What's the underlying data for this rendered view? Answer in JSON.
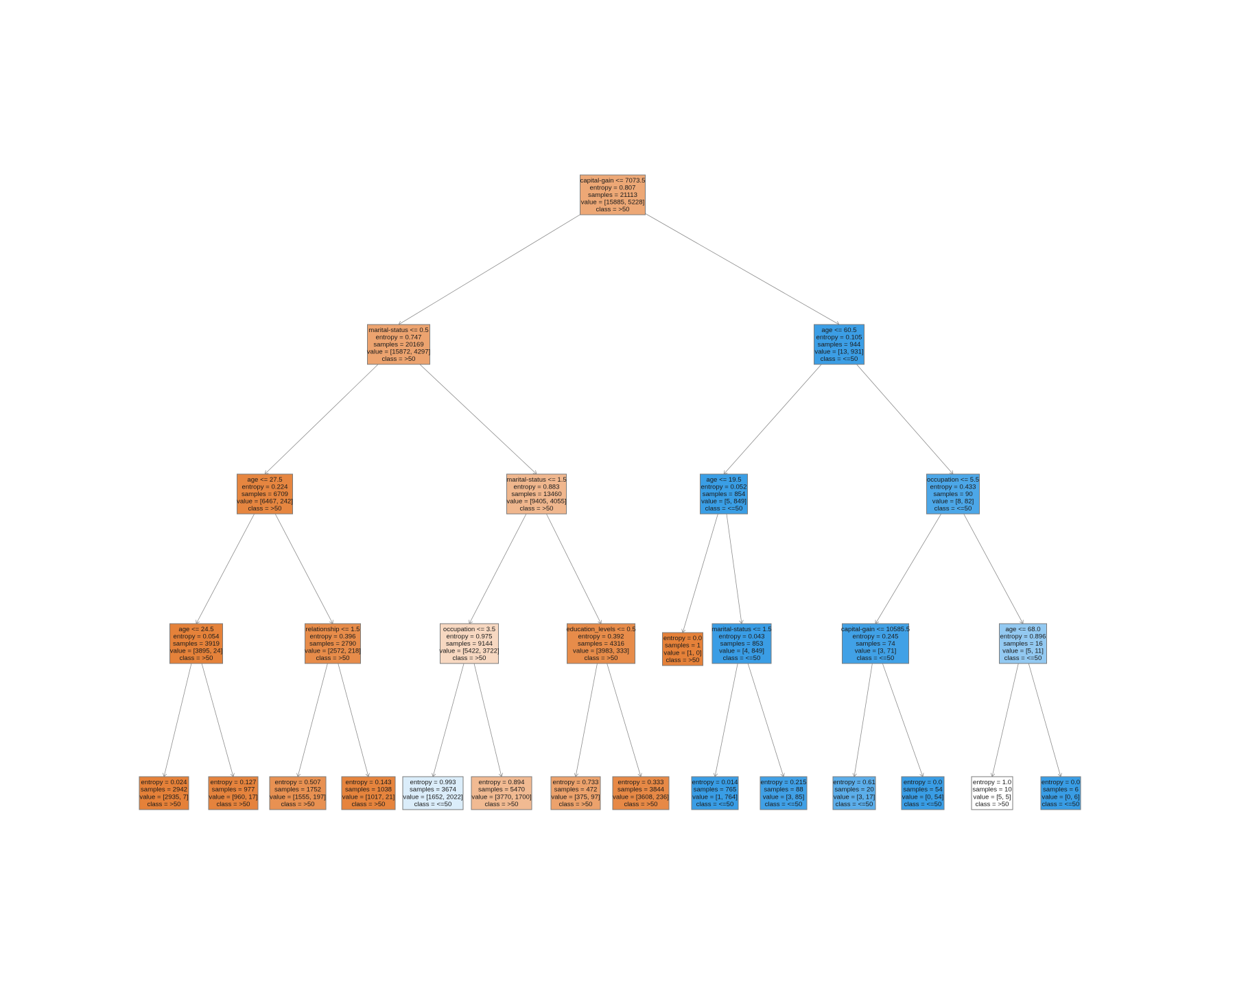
{
  "tree": {
    "nodes": [
      {
        "id": "n0",
        "lines": [
          "capital-gain <= 7073.5",
          "entropy = 0.807",
          "samples = 21113",
          "value = [15885, 5228]",
          "class = >50"
        ],
        "fill": "#eda876"
      },
      {
        "id": "n1",
        "lines": [
          "marital-status <= 0.5",
          "entropy = 0.747",
          "samples = 20169",
          "value = [15872, 4297]",
          "class = >50"
        ],
        "fill": "#eca36f"
      },
      {
        "id": "n2",
        "lines": [
          "age <= 60.5",
          "entropy = 0.105",
          "samples = 944",
          "value = [13, 931]",
          "class = <=50"
        ],
        "fill": "#3c9ee5"
      },
      {
        "id": "n3",
        "lines": [
          "age <= 27.5",
          "entropy = 0.224",
          "samples = 6709",
          "value = [6467, 242]",
          "class = >50"
        ],
        "fill": "#e68640"
      },
      {
        "id": "n4",
        "lines": [
          "marital-status <= 1.5",
          "entropy = 0.883",
          "samples = 13460",
          "value = [9405, 4055]",
          "class = >50"
        ],
        "fill": "#f0b78e"
      },
      {
        "id": "n5",
        "lines": [
          "age <= 19.5",
          "entropy = 0.052",
          "samples = 854",
          "value = [5, 849]",
          "class = <=50"
        ],
        "fill": "#3a9ee5"
      },
      {
        "id": "n6",
        "lines": [
          "occupation <= 5.5",
          "entropy = 0.433",
          "samples = 90",
          "value = [8, 82]",
          "class = <=50"
        ],
        "fill": "#4ca7e8"
      },
      {
        "id": "n7",
        "lines": [
          "age <= 24.5",
          "entropy = 0.054",
          "samples = 3919",
          "value = [3895, 24]",
          "class = >50"
        ],
        "fill": "#e5823a"
      },
      {
        "id": "n8",
        "lines": [
          "relationship <= 1.5",
          "entropy = 0.396",
          "samples = 2790",
          "value = [2572, 218]",
          "class = >50"
        ],
        "fill": "#e78c4a"
      },
      {
        "id": "n9",
        "lines": [
          "occupation <= 3.5",
          "entropy = 0.975",
          "samples = 9144",
          "value = [5422, 3722]",
          "class = >50"
        ],
        "fill": "#f7d8c1"
      },
      {
        "id": "n10",
        "lines": [
          "education_levels <= 0.5",
          "entropy = 0.392",
          "samples = 4316",
          "value = [3983, 333]",
          "class = >50"
        ],
        "fill": "#e78c4a"
      },
      {
        "id": "n11",
        "lines": [
          "entropy = 0.0",
          "samples = 1",
          "value = [1, 0]",
          "class = >50"
        ],
        "fill": "#e58139"
      },
      {
        "id": "n12",
        "lines": [
          "marital-status <= 1.5",
          "entropy = 0.043",
          "samples = 853",
          "value = [4, 849]",
          "class = <=50"
        ],
        "fill": "#3a9de5"
      },
      {
        "id": "n13",
        "lines": [
          "capital-gain <= 10585.5",
          "entropy = 0.245",
          "samples = 74",
          "value = [3, 71]",
          "class = <=50"
        ],
        "fill": "#41a1e6"
      },
      {
        "id": "n14",
        "lines": [
          "age <= 68.0",
          "entropy = 0.896",
          "samples = 16",
          "value = [5, 11]",
          "class = <=50"
        ],
        "fill": "#93c9f1"
      },
      {
        "id": "n15",
        "lines": [
          "entropy = 0.024",
          "samples = 2942",
          "value = [2935, 7]",
          "class = >50"
        ],
        "fill": "#e58139"
      },
      {
        "id": "n16",
        "lines": [
          "entropy = 0.127",
          "samples = 977",
          "value = [960, 17]",
          "class = >50"
        ],
        "fill": "#e5833d"
      },
      {
        "id": "n17",
        "lines": [
          "entropy = 0.507",
          "samples = 1752",
          "value = [1555, 197]",
          "class = >50"
        ],
        "fill": "#e89152"
      },
      {
        "id": "n18",
        "lines": [
          "entropy = 0.143",
          "samples = 1038",
          "value = [1017, 21]",
          "class = >50"
        ],
        "fill": "#e6843d"
      },
      {
        "id": "n19",
        "lines": [
          "entropy = 0.993",
          "samples = 3674",
          "value = [1652, 2022]",
          "class = <=50"
        ],
        "fill": "#dbedfa"
      },
      {
        "id": "n20",
        "lines": [
          "entropy = 0.894",
          "samples = 5470",
          "value = [3770, 1700]",
          "class = >50"
        ],
        "fill": "#f1ba92"
      },
      {
        "id": "n21",
        "lines": [
          "entropy = 0.733",
          "samples = 472",
          "value = [375, 97]",
          "class = >50"
        ],
        "fill": "#eca26c"
      },
      {
        "id": "n22",
        "lines": [
          "entropy = 0.333",
          "samples = 3844",
          "value = [3608, 236]",
          "class = >50"
        ],
        "fill": "#e78946"
      },
      {
        "id": "n23",
        "lines": [
          "entropy = 0.014",
          "samples = 765",
          "value = [1, 764]",
          "class = <=50"
        ],
        "fill": "#399de5"
      },
      {
        "id": "n24",
        "lines": [
          "entropy = 0.215",
          "samples = 88",
          "value = [3, 85]",
          "class = <=50"
        ],
        "fill": "#40a0e6"
      },
      {
        "id": "n25",
        "lines": [
          "entropy = 0.61",
          "samples = 20",
          "value = [3, 17]",
          "class = <=50"
        ],
        "fill": "#5caeea"
      },
      {
        "id": "n26",
        "lines": [
          "entropy = 0.0",
          "samples = 54",
          "value = [0, 54]",
          "class = <=50"
        ],
        "fill": "#399de5"
      },
      {
        "id": "n27",
        "lines": [
          "entropy = 1.0",
          "samples = 10",
          "value = [5, 5]",
          "class = >50"
        ],
        "fill": "#ffffff"
      },
      {
        "id": "n28",
        "lines": [
          "entropy = 0.0",
          "samples = 6",
          "value = [0, 6]",
          "class = <=50"
        ],
        "fill": "#399de5"
      }
    ],
    "edges": [
      [
        "n0",
        "n1"
      ],
      [
        "n0",
        "n2"
      ],
      [
        "n1",
        "n3"
      ],
      [
        "n1",
        "n4"
      ],
      [
        "n2",
        "n5"
      ],
      [
        "n2",
        "n6"
      ],
      [
        "n3",
        "n7"
      ],
      [
        "n3",
        "n8"
      ],
      [
        "n4",
        "n9"
      ],
      [
        "n4",
        "n10"
      ],
      [
        "n5",
        "n11"
      ],
      [
        "n5",
        "n12"
      ],
      [
        "n6",
        "n13"
      ],
      [
        "n6",
        "n14"
      ],
      [
        "n7",
        "n15"
      ],
      [
        "n7",
        "n16"
      ],
      [
        "n8",
        "n17"
      ],
      [
        "n8",
        "n18"
      ],
      [
        "n9",
        "n19"
      ],
      [
        "n9",
        "n20"
      ],
      [
        "n10",
        "n21"
      ],
      [
        "n10",
        "n22"
      ],
      [
        "n12",
        "n23"
      ],
      [
        "n12",
        "n24"
      ],
      [
        "n13",
        "n25"
      ],
      [
        "n13",
        "n26"
      ],
      [
        "n14",
        "n27"
      ],
      [
        "n14",
        "n28"
      ]
    ]
  }
}
